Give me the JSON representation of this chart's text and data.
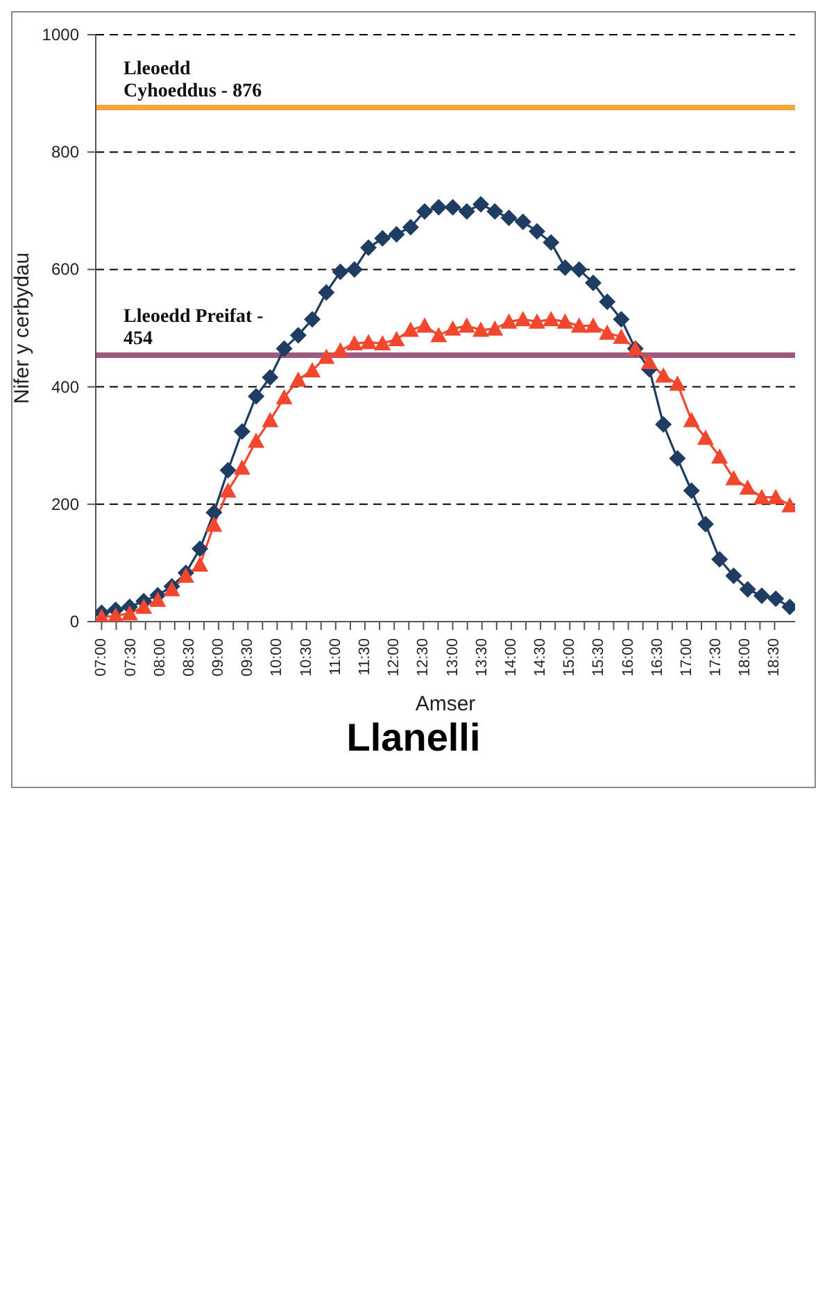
{
  "chart_data": {
    "type": "line",
    "title": "Llanelli",
    "xlabel": "Amser",
    "ylabel": "Nifer y cerbydau",
    "x": [
      7,
      7.24,
      7.48,
      7.72,
      7.96,
      8.2,
      8.44,
      8.68,
      8.92,
      9.16,
      9.4,
      9.64,
      9.88,
      10.12,
      10.36,
      10.6,
      10.84,
      11.08,
      11.32,
      11.56,
      11.8,
      12.04,
      12.28,
      12.52,
      12.76,
      13,
      13.24,
      13.48,
      13.72,
      13.96,
      14.2,
      14.44,
      14.68,
      14.92,
      15.16,
      15.4,
      15.64,
      15.88,
      16.12,
      16.36,
      16.6,
      16.84,
      17.08,
      17.32,
      17.56,
      17.8,
      18.04,
      18.28,
      18.52,
      18.76
    ],
    "series": [
      {
        "color": "#1f3d63",
        "marker": "diamond",
        "values": [
          15,
          20,
          25,
          35,
          45,
          60,
          83,
          124,
          186,
          258,
          324,
          384,
          416,
          465,
          488,
          515,
          561,
          596,
          600,
          637,
          653,
          660,
          672,
          699,
          706,
          706,
          699,
          711,
          699,
          688,
          681,
          665,
          646,
          603,
          600,
          577,
          545,
          515,
          465,
          430,
          336,
          278,
          223,
          166,
          106,
          78,
          55,
          44,
          39,
          25
        ]
      },
      {
        "color": "#f0472e",
        "marker": "triangle",
        "values": [
          8,
          10,
          14,
          25,
          37,
          55,
          78,
          97,
          165,
          223,
          262,
          308,
          343,
          382,
          412,
          428,
          451,
          462,
          474,
          476,
          474,
          481,
          497,
          504,
          488,
          499,
          504,
          497,
          499,
          511,
          515,
          511,
          515,
          511,
          504,
          504,
          492,
          485,
          465,
          442,
          419,
          405,
          343,
          313,
          281,
          244,
          228,
          212,
          212,
          198
        ]
      }
    ],
    "ref_lines": [
      {
        "axis": "y",
        "value": 876,
        "label": "Lleoedd\nCyhoeddus - 876",
        "color": "#f7a540"
      },
      {
        "axis": "y",
        "value": 454,
        "label": "Lleoedd Preifat -\n454",
        "color": "#9e5a82"
      }
    ],
    "xlim": [
      6.9,
      18.85
    ],
    "xticks": [
      {
        "value": 7,
        "label": "07:00"
      },
      {
        "value": 7.25,
        "label": null
      },
      {
        "value": 7.5,
        "label": "07:30"
      },
      {
        "value": 7.75,
        "label": null
      },
      {
        "value": 8,
        "label": "08:00"
      },
      {
        "value": 8.25,
        "label": null
      },
      {
        "value": 8.5,
        "label": "08:30"
      },
      {
        "value": 8.75,
        "label": null
      },
      {
        "value": 9,
        "label": "09:00"
      },
      {
        "value": 9.25,
        "label": null
      },
      {
        "value": 9.5,
        "label": "09:30"
      },
      {
        "value": 9.75,
        "label": null
      },
      {
        "value": 10,
        "label": "10:00"
      },
      {
        "value": 10.25,
        "label": null
      },
      {
        "value": 10.5,
        "label": "10:30"
      },
      {
        "value": 10.75,
        "label": null
      },
      {
        "value": 11,
        "label": "11:00"
      },
      {
        "value": 11.25,
        "label": null
      },
      {
        "value": 11.5,
        "label": "11:30"
      },
      {
        "value": 11.75,
        "label": null
      },
      {
        "value": 12,
        "label": "12:00"
      },
      {
        "value": 12.25,
        "label": null
      },
      {
        "value": 12.5,
        "label": "12:30"
      },
      {
        "value": 12.75,
        "label": null
      },
      {
        "value": 13,
        "label": "13:00"
      },
      {
        "value": 13.25,
        "label": null
      },
      {
        "value": 13.5,
        "label": "13:30"
      },
      {
        "value": 13.75,
        "label": null
      },
      {
        "value": 14,
        "label": "14:00"
      },
      {
        "value": 14.25,
        "label": null
      },
      {
        "value": 14.5,
        "label": "14:30"
      },
      {
        "value": 14.75,
        "label": null
      },
      {
        "value": 15,
        "label": "15:00"
      },
      {
        "value": 15.25,
        "label": null
      },
      {
        "value": 15.5,
        "label": "15:30"
      },
      {
        "value": 15.75,
        "label": null
      },
      {
        "value": 16,
        "label": "16:00"
      },
      {
        "value": 16.25,
        "label": null
      },
      {
        "value": 16.5,
        "label": "16:30"
      },
      {
        "value": 16.75,
        "label": null
      },
      {
        "value": 17,
        "label": "17:00"
      },
      {
        "value": 17.25,
        "label": null
      },
      {
        "value": 17.5,
        "label": "17:30"
      },
      {
        "value": 17.75,
        "label": null
      },
      {
        "value": 18,
        "label": "18:00"
      },
      {
        "value": 18.25,
        "label": null
      },
      {
        "value": 18.5,
        "label": "18:30"
      }
    ],
    "ylim": [
      0,
      1000
    ],
    "yticks": [
      0,
      200,
      400,
      600,
      800,
      1000
    ],
    "grid": "y"
  }
}
